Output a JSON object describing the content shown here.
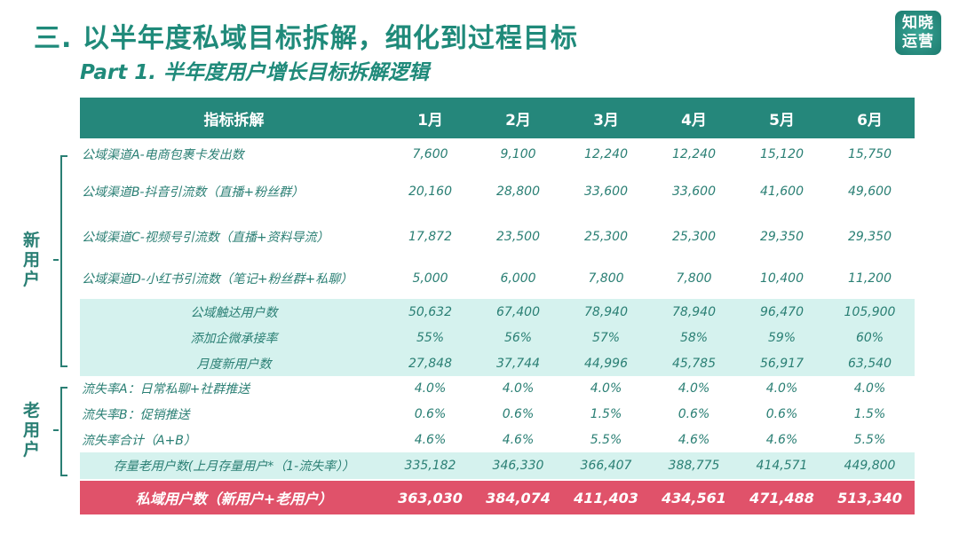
{
  "title": "三. 以半年度私域目标拆解，细化到过程目标",
  "subtitle": "Part 1. 半年度用户增长目标拆解逻辑",
  "logo": "知晓运营",
  "header": [
    "指标拆解",
    "1月",
    "2月",
    "3月",
    "4月",
    "5月",
    "6月"
  ],
  "groups": {
    "new": "新用户",
    "old": "老用户"
  },
  "rows": [
    {
      "label": "公域渠道A-电商包裹卡发出数",
      "values": [
        "7,600",
        "9,100",
        "12,240",
        "12,240",
        "15,120",
        "15,750"
      ]
    },
    {
      "label": "公域渠道B-抖音引流数（直播+粉丝群）",
      "values": [
        "20,160",
        "28,800",
        "33,600",
        "33,600",
        "41,600",
        "49,600"
      ]
    },
    {
      "label": "公域渠道C-视频号引流数（直播+资料导流）",
      "values": [
        "17,872",
        "23,500",
        "25,300",
        "25,300",
        "29,350",
        "29,350"
      ]
    },
    {
      "label": "公域渠道D-小红书引流数（笔记+粉丝群+私聊）",
      "values": [
        "5,000",
        "6,000",
        "7,800",
        "7,800",
        "10,400",
        "11,200"
      ]
    },
    {
      "label": "公域触达用户数",
      "values": [
        "50,632",
        "67,400",
        "78,940",
        "78,940",
        "96,470",
        "105,900"
      ]
    },
    {
      "label": "添加企微承接率",
      "values": [
        "55%",
        "56%",
        "57%",
        "58%",
        "59%",
        "60%"
      ]
    },
    {
      "label": "月度新用户数",
      "values": [
        "27,848",
        "37,744",
        "44,996",
        "45,785",
        "56,917",
        "63,540"
      ]
    },
    {
      "label": "流失率A：日常私聊+社群推送",
      "values": [
        "4.0%",
        "4.0%",
        "4.0%",
        "4.0%",
        "4.0%",
        "4.0%"
      ]
    },
    {
      "label": "流失率B：促销推送",
      "values": [
        "0.6%",
        "0.6%",
        "1.5%",
        "0.6%",
        "0.6%",
        "1.5%"
      ]
    },
    {
      "label": "流失率合计（A+B）",
      "values": [
        "4.6%",
        "4.6%",
        "5.5%",
        "4.6%",
        "4.6%",
        "5.5%"
      ]
    },
    {
      "label": "存量老用户数(上月存量用户*（1-流失率））",
      "values": [
        "335,182",
        "346,330",
        "366,407",
        "388,775",
        "414,571",
        "449,800"
      ]
    },
    {
      "label": "私域用户数（新用户+老用户）",
      "values": [
        "363,030",
        "384,074",
        "411,403",
        "434,561",
        "471,488",
        "513,340"
      ]
    }
  ]
}
